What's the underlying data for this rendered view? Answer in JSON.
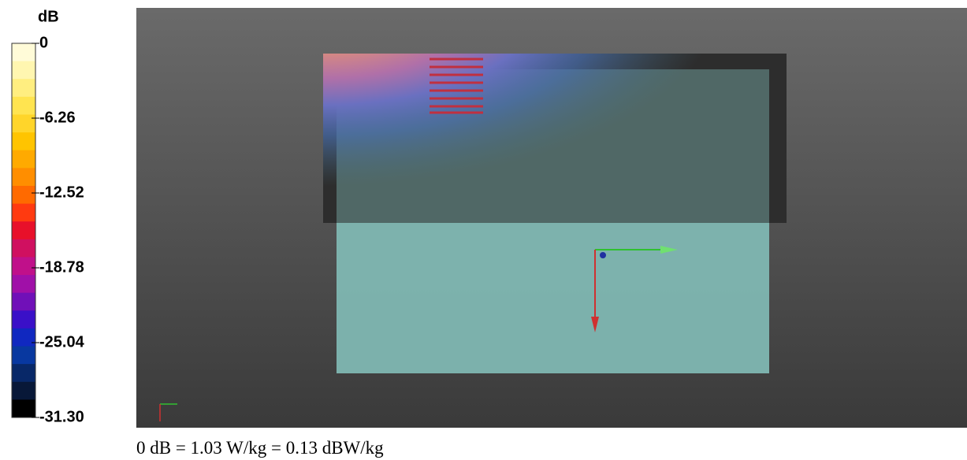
{
  "colorbar": {
    "title": "dB",
    "labels": [
      "0",
      "-6.26",
      "-12.52",
      "-18.78",
      "-25.04",
      "-31.30"
    ]
  },
  "footer": "0 dB = 1.03 W/kg = 0.13 dBW/kg"
}
